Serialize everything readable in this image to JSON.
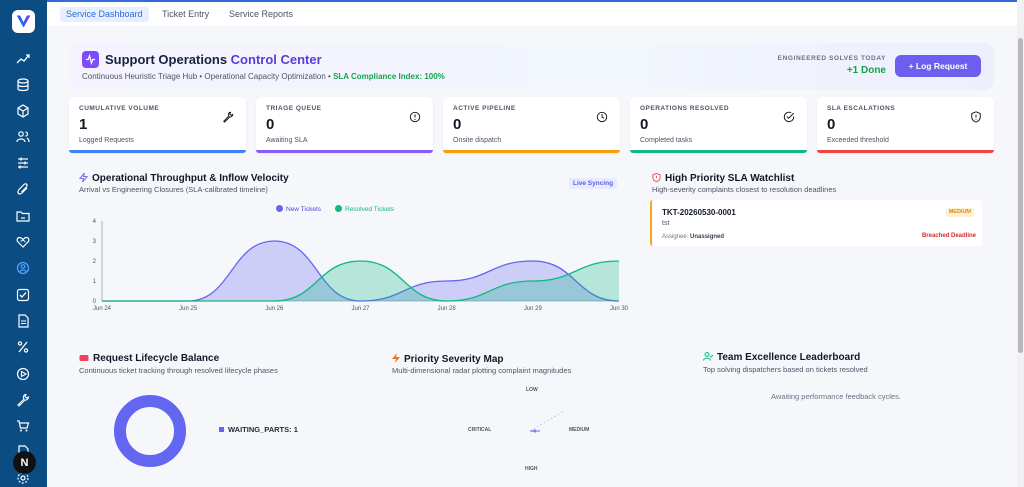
{
  "tabs": [
    {
      "label": "Service Dashboard",
      "active": true
    },
    {
      "label": "Ticket Entry",
      "active": false
    },
    {
      "label": "Service Reports",
      "active": false
    }
  ],
  "sidebar": {
    "icons": [
      "trending-up-icon",
      "database-icon",
      "box-icon",
      "users-icon",
      "sliders-icon",
      "paperclip-icon",
      "folder-icon",
      "heart-handshake-icon",
      "user-circle-icon",
      "check-square-icon",
      "file-text-icon",
      "percent-icon",
      "play-circle-icon",
      "wrench-icon",
      "cart-icon",
      "document-icon",
      "settings-icon"
    ],
    "active_index": 8,
    "badge_letter": "N"
  },
  "header": {
    "title_part1": "Support Operations ",
    "title_part2": "Control Center",
    "subtitle": "Continuous Heuristic Triage Hub • Operational Capacity Optimization • ",
    "sla_text": "SLA Compliance Index: 100%",
    "solves_label": "ENGINEERED SOLVES TODAY",
    "solves_value": "+1 Done",
    "log_button": "+ Log Request"
  },
  "kpis": [
    {
      "label": "CUMULATIVE VOLUME",
      "value": "1",
      "sub": "Logged Requests",
      "icon": "wrench-icon",
      "color": "#3b82f6"
    },
    {
      "label": "TRIAGE QUEUE",
      "value": "0",
      "sub": "Awaiting SLA",
      "icon": "alert-circle-icon",
      "color": "#8b5cf6"
    },
    {
      "label": "ACTIVE PIPELINE",
      "value": "0",
      "sub": "Onsite dispatch",
      "icon": "clock-icon",
      "color": "#f59e0b"
    },
    {
      "label": "OPERATIONS RESOLVED",
      "value": "0",
      "sub": "Completed tasks",
      "icon": "check-circle-icon",
      "color": "#10b981"
    },
    {
      "label": "SLA ESCALATIONS",
      "value": "0",
      "sub": "Exceeded threshold",
      "icon": "shield-alert-icon",
      "color": "#ef4444"
    }
  ],
  "throughput": {
    "title": "Operational Throughput & Inflow Velocity",
    "subtitle": "Arrival vs Engineering Closures (SLA-calibrated timeline)",
    "badge": "Live Syncing"
  },
  "chart_data": {
    "type": "area",
    "x": [
      "Jun 24",
      "Jun 25",
      "Jun 26",
      "Jun 27",
      "Jun 28",
      "Jun 29",
      "Jun 30"
    ],
    "series": [
      {
        "name": "New Tickets",
        "values": [
          0,
          0,
          3,
          0,
          1,
          2,
          0
        ],
        "color": "#6366f1"
      },
      {
        "name": "Resolved Tickets",
        "values": [
          0,
          0,
          0,
          2,
          0,
          1,
          2
        ],
        "color": "#10b981"
      }
    ],
    "yticks": [
      0,
      1,
      2,
      3,
      4
    ],
    "ylim": [
      0,
      4
    ],
    "legend": "top"
  },
  "watchlist": {
    "title": "High Priority SLA Watchlist",
    "subtitle": "High-severity complaints closest to resolution deadlines",
    "item": {
      "id": "TKT-20260530-0001",
      "desc": "tst",
      "priority": "MEDIUM",
      "assignee_label": "Assignee: ",
      "assignee": "Unassigned",
      "status": "Breached Deadline"
    }
  },
  "lifecycle": {
    "title": "Request Lifecycle Balance",
    "subtitle": "Continuous ticket tracking through resolved lifecycle phases",
    "legend": "WAITING_PARTS: 1"
  },
  "severity": {
    "title": "Priority Severity Map",
    "subtitle": "Multi-dimensional radar plotting complaint magnitudes",
    "labels": {
      "top": "LOW",
      "left": "CRITICAL",
      "right": "MEDIUM",
      "bottom": "HIGH"
    }
  },
  "leaderboard": {
    "title": "Team Excellence Leaderboard",
    "subtitle": "Top solving dispatchers based on tickets resolved",
    "empty": "Awaiting performance feedback cycles."
  }
}
